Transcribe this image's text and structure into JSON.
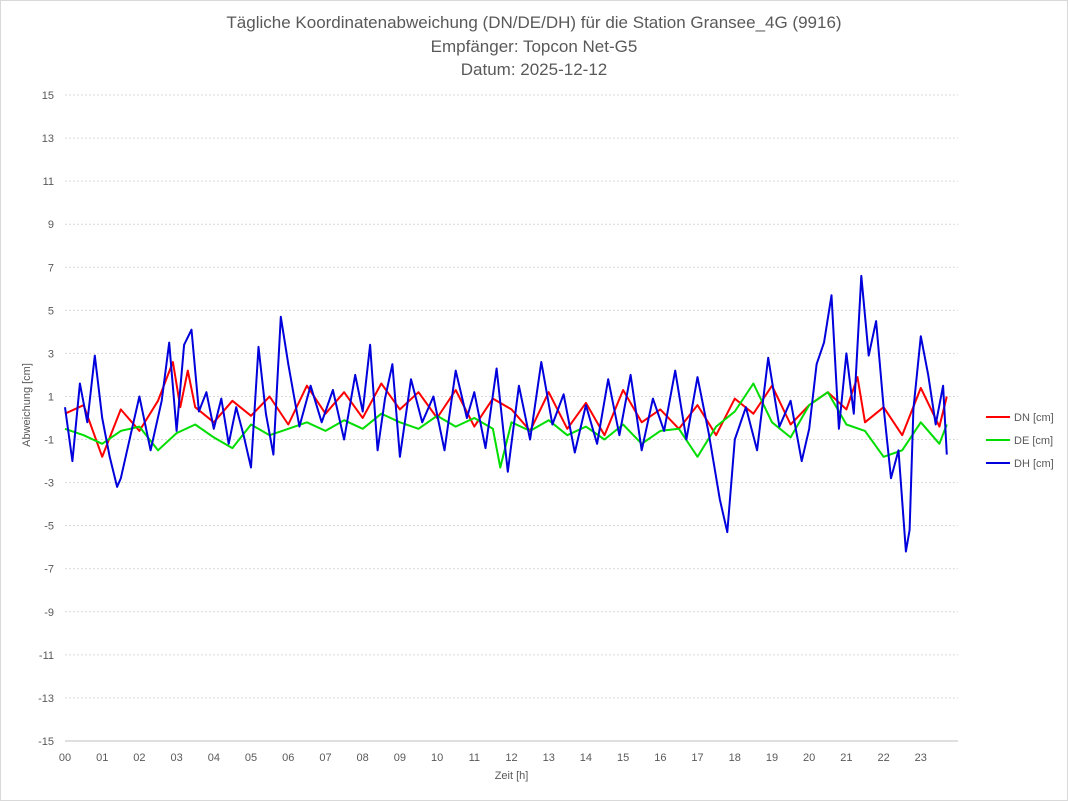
{
  "chart_data": {
    "type": "line",
    "title": "Tägliche Koordinatenabweichung (DN/DE/DH) für die Station Gransee_4G (9916)",
    "subtitle1": "Empfänger: Topcon Net-G5",
    "subtitle2": "Datum: 2025-12-12",
    "xlabel": "Zeit [h]",
    "ylabel": "Abweichung [cm]",
    "xlim": [
      0,
      24
    ],
    "ylim": [
      -15,
      15
    ],
    "x_ticks": [
      "00",
      "01",
      "02",
      "03",
      "04",
      "05",
      "06",
      "07",
      "08",
      "09",
      "10",
      "11",
      "12",
      "13",
      "14",
      "15",
      "16",
      "17",
      "18",
      "19",
      "20",
      "21",
      "22",
      "23"
    ],
    "y_ticks": [
      "15",
      "13",
      "11",
      "9",
      "7",
      "5",
      "3",
      "1",
      "-1",
      "-3",
      "-5",
      "-7",
      "-9",
      "-11",
      "-13",
      "-15"
    ],
    "grid": true,
    "legend_position": "right",
    "series": [
      {
        "name": "DN [cm]",
        "color": "#ff0000",
        "x": [
          0.0,
          0.5,
          1.0,
          1.5,
          2.0,
          2.5,
          2.9,
          3.1,
          3.3,
          3.5,
          4.0,
          4.5,
          5.0,
          5.5,
          6.0,
          6.5,
          7.0,
          7.5,
          8.0,
          8.5,
          9.0,
          9.5,
          10.0,
          10.5,
          11.0,
          11.5,
          12.0,
          12.5,
          13.0,
          13.5,
          14.0,
          14.5,
          15.0,
          15.5,
          16.0,
          16.5,
          17.0,
          17.5,
          18.0,
          18.5,
          19.0,
          19.5,
          20.0,
          20.5,
          21.0,
          21.3,
          21.5,
          22.0,
          22.5,
          23.0,
          23.5,
          23.7
        ],
        "values": [
          0.2,
          0.6,
          -1.8,
          0.4,
          -0.6,
          0.8,
          2.6,
          0.5,
          2.2,
          0.5,
          -0.2,
          0.8,
          0.1,
          1.0,
          -0.3,
          1.5,
          0.2,
          1.2,
          0.0,
          1.6,
          0.4,
          1.2,
          0.0,
          1.3,
          -0.4,
          0.9,
          0.4,
          -0.6,
          1.2,
          -0.5,
          0.7,
          -0.8,
          1.3,
          -0.2,
          0.4,
          -0.5,
          0.6,
          -0.8,
          0.9,
          0.2,
          1.5,
          -0.3,
          0.6,
          1.2,
          0.4,
          1.9,
          -0.2,
          0.5,
          -0.8,
          1.4,
          -0.4,
          1.0
        ]
      },
      {
        "name": "DE [cm]",
        "color": "#00dd00",
        "x": [
          0.0,
          0.5,
          1.0,
          1.5,
          2.0,
          2.5,
          3.0,
          3.5,
          4.0,
          4.5,
          5.0,
          5.5,
          6.0,
          6.5,
          7.0,
          7.5,
          8.0,
          8.5,
          9.0,
          9.5,
          10.0,
          10.5,
          11.0,
          11.5,
          11.7,
          12.0,
          12.5,
          13.0,
          13.5,
          14.0,
          14.5,
          15.0,
          15.5,
          16.0,
          16.5,
          17.0,
          17.5,
          18.0,
          18.5,
          19.0,
          19.5,
          20.0,
          20.5,
          21.0,
          21.5,
          22.0,
          22.5,
          23.0,
          23.5,
          23.7
        ],
        "values": [
          -0.5,
          -0.8,
          -1.2,
          -0.6,
          -0.4,
          -1.5,
          -0.7,
          -0.3,
          -0.9,
          -1.4,
          -0.3,
          -0.8,
          -0.5,
          -0.2,
          -0.6,
          -0.1,
          -0.5,
          0.2,
          -0.2,
          -0.5,
          0.1,
          -0.4,
          0.0,
          -0.5,
          -2.3,
          -0.2,
          -0.6,
          -0.1,
          -0.8,
          -0.4,
          -1.0,
          -0.3,
          -1.2,
          -0.6,
          -0.5,
          -1.8,
          -0.4,
          0.3,
          1.6,
          -0.2,
          -0.9,
          0.6,
          1.2,
          -0.3,
          -0.6,
          -1.8,
          -1.5,
          -0.2,
          -1.2,
          -0.3
        ]
      },
      {
        "name": "DH [cm]",
        "color": "#0000dd",
        "x": [
          0.0,
          0.2,
          0.4,
          0.6,
          0.8,
          1.0,
          1.2,
          1.4,
          1.5,
          1.8,
          2.0,
          2.3,
          2.6,
          2.8,
          3.0,
          3.2,
          3.4,
          3.6,
          3.8,
          4.0,
          4.2,
          4.4,
          4.6,
          4.8,
          5.0,
          5.2,
          5.4,
          5.6,
          5.8,
          6.0,
          6.3,
          6.6,
          6.9,
          7.2,
          7.5,
          7.8,
          8.0,
          8.2,
          8.4,
          8.6,
          8.8,
          9.0,
          9.3,
          9.6,
          9.9,
          10.2,
          10.5,
          10.8,
          11.0,
          11.3,
          11.6,
          11.9,
          12.2,
          12.5,
          12.8,
          13.1,
          13.4,
          13.7,
          14.0,
          14.3,
          14.6,
          14.9,
          15.2,
          15.5,
          15.8,
          16.1,
          16.4,
          16.7,
          17.0,
          17.3,
          17.6,
          17.8,
          18.0,
          18.3,
          18.6,
          18.9,
          19.2,
          19.5,
          19.8,
          20.0,
          20.2,
          20.4,
          20.6,
          20.8,
          21.0,
          21.2,
          21.4,
          21.6,
          21.8,
          22.0,
          22.2,
          22.4,
          22.6,
          22.7,
          22.8,
          23.0,
          23.2,
          23.4,
          23.6,
          23.7
        ],
        "values": [
          0.5,
          -2.0,
          1.6,
          -0.2,
          2.9,
          0.0,
          -1.8,
          -3.2,
          -2.8,
          -0.5,
          1.0,
          -1.5,
          0.8,
          3.5,
          -0.6,
          3.4,
          4.1,
          0.3,
          1.2,
          -0.5,
          0.9,
          -1.2,
          0.5,
          -0.8,
          -2.3,
          3.3,
          0.2,
          -1.7,
          4.7,
          2.5,
          -0.4,
          1.5,
          -0.2,
          1.3,
          -1.0,
          2.0,
          0.3,
          3.4,
          -1.5,
          0.9,
          2.5,
          -1.8,
          1.8,
          -0.2,
          1.0,
          -1.5,
          2.2,
          0.0,
          1.2,
          -1.4,
          2.3,
          -2.5,
          1.5,
          -1.0,
          2.6,
          -0.3,
          1.1,
          -1.6,
          0.6,
          -1.2,
          1.8,
          -0.8,
          2.0,
          -1.5,
          0.9,
          -0.6,
          2.2,
          -1.0,
          1.9,
          -0.7,
          -3.8,
          -5.3,
          -1.0,
          0.5,
          -1.5,
          2.8,
          -0.4,
          0.8,
          -2.0,
          -0.5,
          2.5,
          3.5,
          5.7,
          -0.5,
          3.0,
          0.2,
          6.6,
          2.9,
          4.5,
          0.5,
          -2.8,
          -1.5,
          -6.2,
          -5.2,
          0.4,
          3.8,
          2.0,
          -0.3,
          1.5,
          -1.7
        ]
      }
    ]
  }
}
